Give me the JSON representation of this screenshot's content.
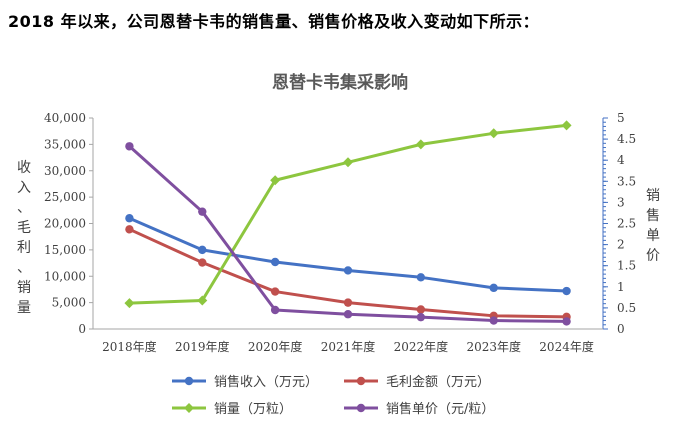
{
  "heading": "2018 年以来，公司恩替卡韦的销售量、销售价格及收入变动如下所示：",
  "chart_data": {
    "type": "line",
    "title": "恩替卡韦集采影响",
    "categories": [
      "2018年度",
      "2019年度",
      "2020年度",
      "2021年度",
      "2022年度",
      "2023年度",
      "2024年度"
    ],
    "y_left": {
      "label_chars": [
        "收",
        "入",
        "、",
        "毛",
        "利",
        "、",
        "销",
        "量"
      ],
      "ylim": [
        0,
        40000
      ],
      "ticks": [
        "0",
        "5,000",
        "10,000",
        "15,000",
        "20,000",
        "25,000",
        "30,000",
        "35,000",
        "40,000"
      ]
    },
    "y_right": {
      "label_chars": [
        "销",
        "售",
        "单",
        "价"
      ],
      "ylim": [
        0,
        5
      ],
      "ticks": [
        "0",
        "0.5",
        "1",
        "1.5",
        "2",
        "2.5",
        "3",
        "3.5",
        "4",
        "4.5",
        "5"
      ]
    },
    "series": [
      {
        "name": "销售收入（万元）",
        "axis": "left",
        "color": "#4472C4",
        "marker": "circle",
        "values": [
          21000,
          15000,
          12700,
          11100,
          9800,
          7800,
          7200
        ]
      },
      {
        "name": "毛利金额（万元）",
        "axis": "left",
        "color": "#C0504D",
        "marker": "circle",
        "values": [
          18900,
          12600,
          7100,
          5000,
          3700,
          2500,
          2300
        ]
      },
      {
        "name": "销量（万粒）",
        "axis": "left",
        "color": "#8DC63F",
        "marker": "diamond",
        "values": [
          4900,
          5400,
          28200,
          31600,
          35000,
          37100,
          38600
        ]
      },
      {
        "name": "销售单价（元/粒）",
        "axis": "right",
        "color": "#7F4F9F",
        "marker": "circle",
        "values": [
          4.33,
          2.78,
          0.45,
          0.35,
          0.28,
          0.2,
          0.18
        ]
      }
    ],
    "grid": false,
    "legend_position": "bottom"
  }
}
